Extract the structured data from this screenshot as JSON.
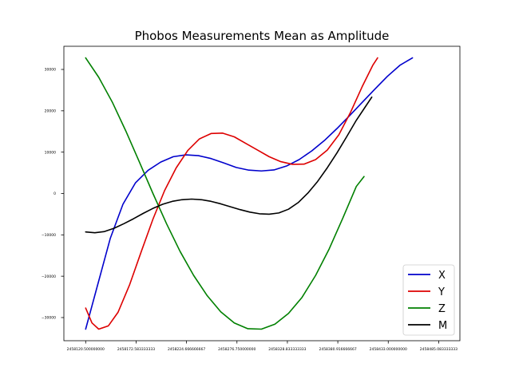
{
  "chart_data": {
    "type": "line",
    "title": "Phobos Measurements Mean as Amplitude",
    "xlabel": "",
    "ylabel": "",
    "xlim": [
      2458098.0,
      2458507.0
    ],
    "ylim": [
      -35600,
      35600
    ],
    "x_ticks": [
      2458120.5,
      2458172.583333333,
      2458224.666666667,
      2458276.75,
      2458328.833333333,
      2458380.916666667,
      2458433.0,
      2458485.083333333
    ],
    "x_tick_labels": [
      "2458120.500000000",
      "2458172.583333333",
      "2458224.666666667",
      "2458276.750000000",
      "2458328.833333333",
      "2458380.916666667",
      "2458433.000000000",
      "2458485.083333333"
    ],
    "y_ticks": [
      -30000,
      -20000,
      -10000,
      0,
      10000,
      20000,
      30000
    ],
    "y_tick_labels": [
      "−30000",
      "−20000",
      "−10000",
      "0",
      "10000",
      "20000",
      "30000"
    ],
    "grid": false,
    "legend_position": "lower-right",
    "series": [
      {
        "name": "X",
        "color": "#0000cc",
        "points": [
          [
            2458120.5,
            -32800
          ],
          [
            2458133,
            -22000
          ],
          [
            2458146,
            -10800
          ],
          [
            2458159,
            -2600
          ],
          [
            2458172,
            2600
          ],
          [
            2458185,
            5600
          ],
          [
            2458198,
            7600
          ],
          [
            2458211,
            8900
          ],
          [
            2458224,
            9350
          ],
          [
            2458237,
            9150
          ],
          [
            2458250,
            8450
          ],
          [
            2458263,
            7400
          ],
          [
            2458276,
            6300
          ],
          [
            2458289,
            5650
          ],
          [
            2458302,
            5450
          ],
          [
            2458315,
            5700
          ],
          [
            2458328,
            6650
          ],
          [
            2458341,
            8200
          ],
          [
            2458354,
            10300
          ],
          [
            2458367,
            12800
          ],
          [
            2458380,
            15700
          ],
          [
            2458393,
            18800
          ],
          [
            2458406,
            22000
          ],
          [
            2458419,
            25200
          ],
          [
            2458432,
            28300
          ],
          [
            2458445,
            31000
          ],
          [
            2458458,
            32800
          ]
        ]
      },
      {
        "name": "Y",
        "color": "#dd0000",
        "points": [
          [
            2458120.5,
            -27700
          ],
          [
            2458127,
            -31300
          ],
          [
            2458134,
            -32800
          ],
          [
            2458144,
            -32000
          ],
          [
            2458154,
            -28700
          ],
          [
            2458166,
            -22000
          ],
          [
            2458178,
            -14000
          ],
          [
            2458190,
            -6200
          ],
          [
            2458202,
            700
          ],
          [
            2458214,
            6200
          ],
          [
            2458226,
            10400
          ],
          [
            2458238,
            13200
          ],
          [
            2458250,
            14500
          ],
          [
            2458262,
            14600
          ],
          [
            2458274,
            13700
          ],
          [
            2458286,
            12100
          ],
          [
            2458298,
            10500
          ],
          [
            2458310,
            8900
          ],
          [
            2458322,
            7700
          ],
          [
            2458334,
            7050
          ],
          [
            2458346,
            7100
          ],
          [
            2458358,
            8200
          ],
          [
            2458370,
            10500
          ],
          [
            2458382,
            14200
          ],
          [
            2458394,
            19600
          ],
          [
            2458406,
            25800
          ],
          [
            2458417,
            31000
          ],
          [
            2458422,
            32800
          ]
        ]
      },
      {
        "name": "Z",
        "color": "#008000",
        "points": [
          [
            2458120.5,
            32800
          ],
          [
            2458134,
            28100
          ],
          [
            2458148,
            22100
          ],
          [
            2458162,
            15100
          ],
          [
            2458176,
            7600
          ],
          [
            2458190,
            0
          ],
          [
            2458204,
            -7300
          ],
          [
            2458218,
            -14000
          ],
          [
            2458232,
            -19800
          ],
          [
            2458246,
            -24700
          ],
          [
            2458260,
            -28600
          ],
          [
            2458274,
            -31300
          ],
          [
            2458288,
            -32700
          ],
          [
            2458302,
            -32800
          ],
          [
            2458316,
            -31600
          ],
          [
            2458330,
            -29000
          ],
          [
            2458344,
            -25100
          ],
          [
            2458358,
            -19800
          ],
          [
            2458372,
            -13400
          ],
          [
            2458386,
            -6000
          ],
          [
            2458400,
            1700
          ],
          [
            2458408,
            4100
          ]
        ]
      },
      {
        "name": "M",
        "color": "#000000",
        "points": [
          [
            2458120.5,
            -9300
          ],
          [
            2458130,
            -9500
          ],
          [
            2458140,
            -9200
          ],
          [
            2458150,
            -8400
          ],
          [
            2458160,
            -7300
          ],
          [
            2458170,
            -6100
          ],
          [
            2458180,
            -4800
          ],
          [
            2458190,
            -3600
          ],
          [
            2458200,
            -2600
          ],
          [
            2458210,
            -1900
          ],
          [
            2458220,
            -1500
          ],
          [
            2458230,
            -1350
          ],
          [
            2458240,
            -1500
          ],
          [
            2458250,
            -1900
          ],
          [
            2458260,
            -2500
          ],
          [
            2458270,
            -3200
          ],
          [
            2458280,
            -3900
          ],
          [
            2458290,
            -4500
          ],
          [
            2458300,
            -4900
          ],
          [
            2458310,
            -5000
          ],
          [
            2458320,
            -4700
          ],
          [
            2458330,
            -3800
          ],
          [
            2458340,
            -2200
          ],
          [
            2458350,
            100
          ],
          [
            2458360,
            2900
          ],
          [
            2458370,
            6200
          ],
          [
            2458380,
            9800
          ],
          [
            2458390,
            13700
          ],
          [
            2458400,
            17700
          ],
          [
            2458410,
            21200
          ],
          [
            2458416,
            23300
          ]
        ]
      }
    ]
  }
}
